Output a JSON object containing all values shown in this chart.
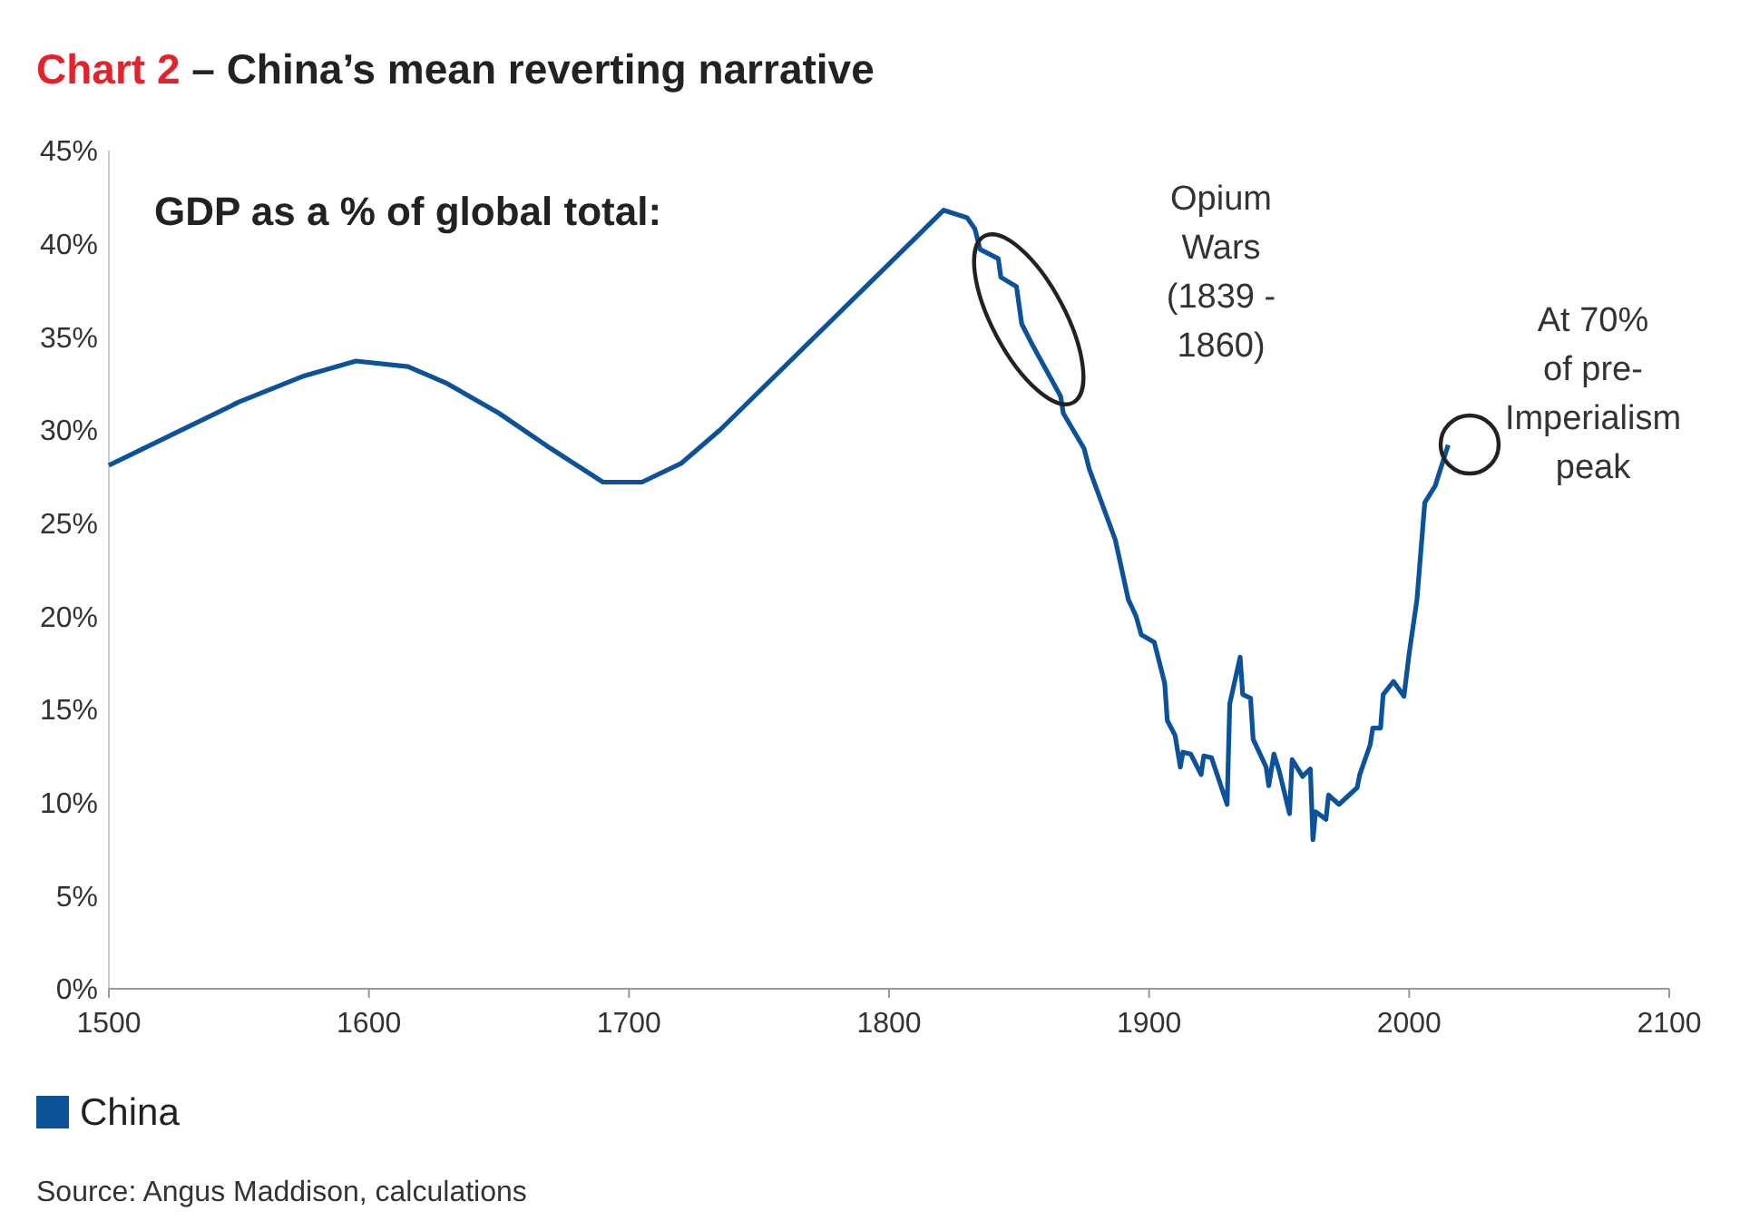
{
  "chart_data": {
    "type": "line",
    "title": "Chart 2 – China’s mean reverting narrative",
    "subtitle": "GDP as a % of global total:",
    "x": [
      1500,
      1525,
      1550,
      1575,
      1595,
      1615,
      1630,
      1650,
      1670,
      1690,
      1705,
      1720,
      1735,
      1821,
      1830,
      1833,
      1835,
      1842,
      1843,
      1849,
      1851,
      1855,
      1866,
      1867,
      1875,
      1877,
      1887,
      1892,
      1894,
      1895,
      1897,
      1902,
      1906,
      1907,
      1910,
      1912,
      1913,
      1916,
      1920,
      1921,
      1924,
      1930,
      1931,
      1935,
      1936,
      1939,
      1940,
      1945,
      1946,
      1948,
      1950,
      1954,
      1955,
      1959,
      1962,
      1963,
      1964,
      1968,
      1969,
      1973,
      1980,
      1981,
      1985,
      1986,
      1989,
      1990,
      1994,
      1998,
      2000,
      2003,
      2006,
      2010,
      2015
    ],
    "series": [
      {
        "name": "China",
        "color": "#0c5299",
        "values": [
          28.1,
          29.8,
          31.5,
          32.9,
          33.7,
          33.4,
          32.5,
          30.9,
          29.0,
          27.2,
          27.2,
          28.2,
          30.0,
          41.8,
          41.4,
          40.8,
          39.7,
          39.2,
          38.2,
          37.7,
          35.7,
          34.6,
          31.8,
          30.9,
          29.0,
          27.9,
          24.1,
          20.9,
          20.3,
          20.0,
          19.0,
          18.6,
          16.4,
          14.4,
          13.6,
          11.9,
          12.7,
          12.6,
          11.5,
          12.5,
          12.4,
          9.9,
          15.3,
          17.8,
          15.8,
          15.6,
          13.4,
          11.9,
          10.9,
          12.6,
          11.7,
          9.4,
          12.3,
          11.4,
          11.8,
          8.0,
          9.5,
          9.1,
          10.4,
          9.9,
          10.8,
          11.5,
          13.1,
          14.0,
          14.0,
          15.8,
          16.5,
          15.7,
          18.0,
          20.9,
          26.1,
          27.0,
          29.2
        ]
      }
    ],
    "xlim": [
      1500,
      2100
    ],
    "xticks": [
      1500,
      1600,
      1700,
      1800,
      1900,
      2000,
      2100
    ],
    "ylim": [
      0,
      45
    ],
    "yticks": [
      {
        "value": 0,
        "label": "0%"
      },
      {
        "value": 5,
        "label": "5%"
      },
      {
        "value": 10,
        "label": "10%"
      },
      {
        "value": 15,
        "label": "15%"
      },
      {
        "value": 20,
        "label": "20%"
      },
      {
        "value": 25,
        "label": "25%"
      },
      {
        "value": 30,
        "label": "30%"
      },
      {
        "value": 35,
        "label": "35%"
      },
      {
        "value": 40,
        "label": "40%"
      },
      {
        "value": 45,
        "label": "45%"
      }
    ],
    "grid": false,
    "legend": "bottom left",
    "marker": "none",
    "line_style": "solid",
    "annotations": [
      "Opium Wars (1839 - 1860)",
      "At 70% of pre-Imperialism peak",
      "Source: Angus Maddison, calculations"
    ]
  }
}
